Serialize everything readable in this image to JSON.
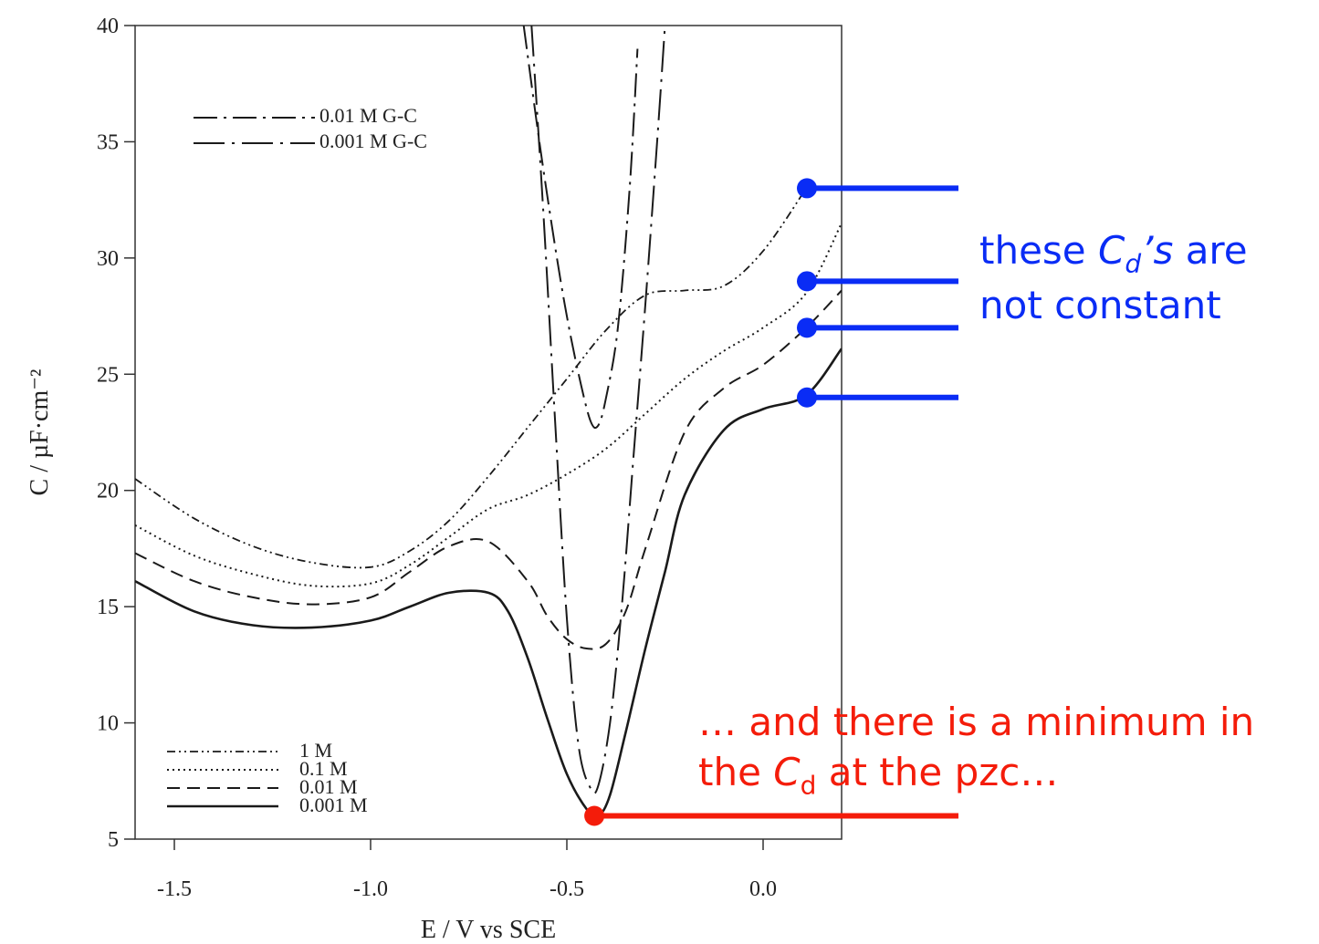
{
  "chart_data": {
    "type": "line",
    "xlabel": "E / V vs SCE",
    "ylabel": "C / µF·cm⁻²",
    "xlim": [
      -1.6,
      0.2
    ],
    "ylim": [
      5,
      40
    ],
    "x_ticks": [
      "-1.5",
      "-1.0",
      "-0.5",
      "0.0"
    ],
    "y_ticks": [
      "5",
      "10",
      "15",
      "20",
      "25",
      "30",
      "35",
      "40"
    ],
    "grid": false,
    "legend_top": {
      "placement": "top-left",
      "entries": [
        "0.01 M G-C",
        "0.001 M G-C"
      ]
    },
    "legend_bottom": {
      "placement": "bottom-left",
      "entries": [
        "1 M",
        "0.1 M",
        "0.01 M",
        "0.001 M"
      ]
    },
    "series": [
      {
        "name": "1 M",
        "style": "dash-dot-dot",
        "x": [
          -1.6,
          -1.45,
          -1.3,
          -1.15,
          -1.0,
          -0.9,
          -0.8,
          -0.7,
          -0.6,
          -0.5,
          -0.4,
          -0.3,
          -0.2,
          -0.1,
          0.0,
          0.11
        ],
        "y": [
          20.5,
          18.8,
          17.6,
          16.9,
          16.7,
          17.4,
          18.7,
          20.6,
          22.7,
          24.8,
          26.9,
          28.4,
          28.6,
          28.8,
          30.3,
          33.0
        ]
      },
      {
        "name": "0.1 M",
        "style": "dotted",
        "x": [
          -1.6,
          -1.45,
          -1.3,
          -1.15,
          -1.0,
          -0.9,
          -0.8,
          -0.7,
          -0.6,
          -0.5,
          -0.4,
          -0.3,
          -0.2,
          -0.1,
          0.0,
          0.11,
          0.2
        ],
        "y": [
          18.5,
          17.2,
          16.4,
          15.9,
          16.0,
          16.8,
          18.0,
          19.2,
          19.8,
          20.7,
          21.8,
          23.3,
          24.8,
          26.0,
          27.0,
          28.5,
          31.5
        ]
      },
      {
        "name": "0.01 M",
        "style": "dashed",
        "x": [
          -1.6,
          -1.45,
          -1.3,
          -1.15,
          -1.0,
          -0.9,
          -0.8,
          -0.7,
          -0.6,
          -0.55,
          -0.5,
          -0.45,
          -0.4,
          -0.35,
          -0.3,
          -0.2,
          -0.1,
          0.0,
          0.11,
          0.2
        ],
        "y": [
          17.3,
          16.1,
          15.4,
          15.1,
          15.4,
          16.5,
          17.6,
          17.8,
          16.1,
          14.6,
          13.6,
          13.2,
          13.4,
          14.8,
          17.5,
          22.5,
          24.4,
          25.4,
          27.0,
          28.6
        ]
      },
      {
        "name": "0.001 M",
        "style": "solid",
        "x": [
          -1.6,
          -1.45,
          -1.3,
          -1.15,
          -1.0,
          -0.9,
          -0.8,
          -0.7,
          -0.65,
          -0.6,
          -0.55,
          -0.5,
          -0.45,
          -0.42,
          -0.39,
          -0.35,
          -0.3,
          -0.25,
          -0.2,
          -0.1,
          0.0,
          0.11,
          0.2
        ],
        "y": [
          16.1,
          14.8,
          14.2,
          14.1,
          14.4,
          15.0,
          15.6,
          15.6,
          14.8,
          12.8,
          10.2,
          7.8,
          6.3,
          6.0,
          6.9,
          9.6,
          13.2,
          16.5,
          19.8,
          22.6,
          23.5,
          24.1,
          26.1
        ]
      },
      {
        "name": "0.01 M G-C",
        "style": "dash-dot",
        "x": [
          -0.61,
          -0.57,
          -0.53,
          -0.5,
          -0.47,
          -0.44,
          -0.42,
          -0.4,
          -0.37,
          -0.34,
          -0.32
        ],
        "y": [
          40.0,
          35.0,
          30.5,
          27.5,
          25.0,
          23.0,
          22.8,
          24.0,
          27.0,
          33.0,
          39.0
        ]
      },
      {
        "name": "0.001 M G-C",
        "style": "long-dash-dot",
        "x": [
          -0.59,
          -0.56,
          -0.53,
          -0.5,
          -0.47,
          -0.44,
          -0.42,
          -0.39,
          -0.36,
          -0.33,
          -0.3,
          -0.27,
          -0.25
        ],
        "y": [
          40.0,
          32.0,
          23.0,
          14.5,
          9.0,
          7.2,
          7.3,
          10.0,
          15.0,
          21.5,
          28.0,
          35.0,
          40.0
        ]
      }
    ]
  },
  "annotations": {
    "blue_text_1": "these ",
    "blue_text_c": "C",
    "blue_text_d": "d",
    "blue_text_s": "’s",
    "blue_text_2": " are not constant",
    "blue_color": "#0a2cf5",
    "blue_marker_y": [
      33.0,
      29.0,
      27.0,
      24.0
    ],
    "red_text_1": "… and there is a minimum in the ",
    "red_text_c": "C",
    "red_text_d": "d",
    "red_text_2": " at the pzc…",
    "red_color": "#f41c0a",
    "red_marker": [
      -0.43,
      6.0
    ]
  }
}
